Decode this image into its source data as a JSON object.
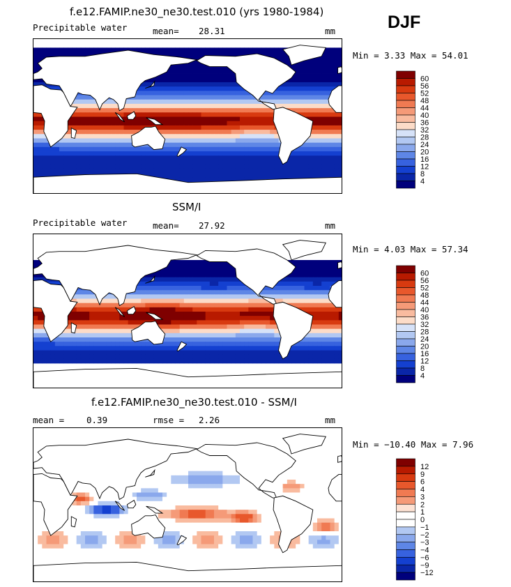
{
  "season": "DJF",
  "panels": [
    {
      "title": "f.e12.FAMIP.ne30_ne30.test.010 (yrs 1980-1984)",
      "left_label": "Precipitable water",
      "center_label": "mean=",
      "center_value": "28.31",
      "units": "mm",
      "minmax": "Min =    3.33 Max =   54.01",
      "colorbar_ticks": [
        "60",
        "56",
        "52",
        "48",
        "44",
        "40",
        "36",
        "32",
        "28",
        "24",
        "20",
        "16",
        "12",
        "8",
        "4"
      ],
      "kind": "model"
    },
    {
      "title": "SSM/I",
      "left_label": "Precipitable water",
      "center_label": "mean=",
      "center_value": "27.92",
      "units": "mm",
      "minmax": "Min =    4.03 Max =   57.34",
      "colorbar_ticks": [
        "60",
        "56",
        "52",
        "48",
        "44",
        "40",
        "36",
        "32",
        "28",
        "24",
        "20",
        "16",
        "12",
        "8",
        "4"
      ],
      "kind": "obs"
    },
    {
      "title": "f.e12.FAMIP.ne30_ne30.test.010 - SSM/I",
      "left_label": "mean =",
      "left_value": "0.39",
      "center_label": "rmse =",
      "center_value": "2.26",
      "units": "mm",
      "minmax": "Min = −10.40 Max =    7.96",
      "colorbar_ticks": [
        "12",
        "9",
        "6",
        "4",
        "3",
        "2",
        "1",
        "0",
        "−1",
        "−2",
        "−3",
        "−4",
        "−6",
        "−9",
        "−12"
      ],
      "kind": "diff"
    }
  ],
  "colors": {
    "palette": [
      "#7f0000",
      "#b81a00",
      "#d83a10",
      "#e8582c",
      "#f07a52",
      "#f59a78",
      "#f9bb9f",
      "#fcdcc8",
      "#ffffff",
      "#d6e2f8",
      "#b2c8f2",
      "#8aa8ec",
      "#5e86e6",
      "#3762df",
      "#1440d0",
      "#0a26a8",
      "#00007c"
    ]
  },
  "chart_data": [
    {
      "type": "heatmap",
      "title": "f.e12.FAMIP.ne30_ne30.test.010 (yrs 1980-1984)",
      "variable": "Precipitable water",
      "units": "mm",
      "mean": 28.31,
      "min": 3.33,
      "max": 54.01,
      "levels": [
        4,
        8,
        12,
        16,
        20,
        24,
        28,
        32,
        36,
        40,
        44,
        48,
        52,
        56,
        60
      ],
      "lat_range": [
        -90,
        90
      ],
      "lon_range": [
        0,
        360
      ]
    },
    {
      "type": "heatmap",
      "title": "SSM/I",
      "variable": "Precipitable water",
      "units": "mm",
      "mean": 27.92,
      "min": 4.03,
      "max": 57.34,
      "levels": [
        4,
        8,
        12,
        16,
        20,
        24,
        28,
        32,
        36,
        40,
        44,
        48,
        52,
        56,
        60
      ],
      "lat_range": [
        -90,
        90
      ],
      "lon_range": [
        0,
        360
      ]
    },
    {
      "type": "heatmap",
      "title": "f.e12.FAMIP.ne30_ne30.test.010 - SSM/I",
      "units": "mm",
      "mean": 0.39,
      "rmse": 2.26,
      "min": -10.4,
      "max": 7.96,
      "levels": [
        -12,
        -9,
        -6,
        -4,
        -3,
        -2,
        -1,
        0,
        1,
        2,
        3,
        4,
        6,
        9,
        12
      ],
      "lat_range": [
        -90,
        90
      ],
      "lon_range": [
        0,
        360
      ]
    }
  ]
}
